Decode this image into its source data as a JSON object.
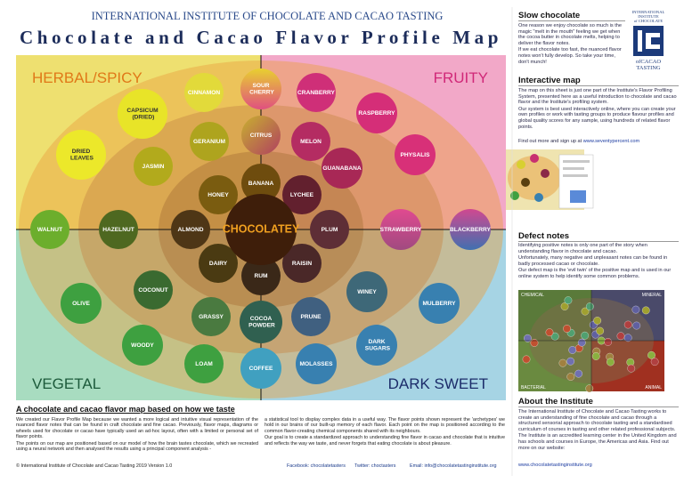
{
  "header": {
    "org": "INTERNATIONAL INSTITUTE OF CHOCOLATE AND CACAO TASTING",
    "title": "Chocolate and Cacao Flavor Profile Map"
  },
  "map": {
    "quadrants": {
      "top_left": "HERBAL/SPICY",
      "top_right": "FRUITY",
      "bottom_left": "VEGETAL",
      "bottom_right": "DARK SWEET"
    },
    "center": "CHOCOLATEY",
    "nodes": [
      "CINNAMON",
      "SOUR CHERRY",
      "CRANBERRY",
      "CAPSICUM (DRIED)",
      "RASPBERRY",
      "GERANIUM",
      "CITRUS",
      "MELON",
      "DRIED LEAVES",
      "JASMIN",
      "GUANABANA",
      "PHYSALIS",
      "BANANA",
      "HONEY",
      "LYCHEE",
      "WALNUT",
      "HAZELNUT",
      "ALMOND",
      "PLUM",
      "STRAWBERRY",
      "BLACKBERRY",
      "DAIRY",
      "RAISIN",
      "RUM",
      "COCONUT",
      "WINEY",
      "OLIVE",
      "MULBERRY",
      "GRASSY",
      "COCOA POWDER",
      "PRUNE",
      "WOODY",
      "DARK SUGARS",
      "LOAM",
      "COFFEE",
      "MOLASSES"
    ]
  },
  "intro": {
    "title": "A chocolate and cacao flavor map based on how we taste",
    "col1": [
      "We created our Flavor Profile Map because we wanted a more logical and intuitive visual representation of the nuanced flavor notes that can be found in craft chocolate and fine cacao. Previously, flavor maps, diagrams or wheels used for chocolate or cacao have typically used an ad-hoc layout, often with a limited or personal set of flavor points.",
      "The points on our map are positioned based on our model of how the brain tastes chocolate, which we recreated using a neural network and then analysed the results using a principal component analysis -"
    ],
    "col2": [
      "a statistical tool to display complex data in a useful way. The flavor points shown represent the 'archetypes' we hold in our brains of our built-up memory of each flavor. Each point on the map is positioned according to the common flavor-creating chemical components shared with its neighbours.",
      "Our goal is to create a standardized approach to understanding fine flavor in cacao and chocolate that is intuitive and reflects the way we taste, and never forgets that eating chocolate is about pleasure."
    ],
    "copyright": "© International Institute of Chocolate and Cacao Tasting 2019  Version 1.0",
    "facebook": "Facebook: chocolatetasters",
    "twitter": "Twitter: choctasters",
    "email": "Email: info@chocolatetastinginstitute.org"
  },
  "logo": {
    "top1": "INTERNATIONAL",
    "top2": "INSTITUTE",
    "top3": "of CHOCOLATE",
    "bottom1": "ofCACAO",
    "bottom2": "TASTING"
  },
  "sidebar": {
    "slow": {
      "title": "Slow chocolate",
      "paragraphs": [
        "One reason we enjoy chocolate so much is the magic \"melt in the mouth\" feeling we get when the cocoa butter in chocolate melts, helping to deliver the flavor notes.",
        "If we eat chocolate too fast, the nuanced flavor notes won't fully develop. So take your time, don't munch!"
      ]
    },
    "interactive": {
      "title": "Interactive map",
      "paragraphs": [
        "The map on this sheet is just one part of the Institute's Flavor Profiling System, presented here as a useful introduction to chocolate and cacao flavor and the Institute's profiling system.",
        "Our system is best used interactively online, where you can create your own profiles or work with tasting groups to produce flavour profiles and global quality scores for any sample, using hundreds of related flavor points."
      ],
      "link_text": "Find out more and sign up at ",
      "link": "www.seventypercent.com"
    },
    "defect": {
      "title": "Defect notes",
      "paragraphs": [
        "Identifying positive notes is only one part of the story when understanding flavor in chocolate and cacao.",
        "Unfortunately, many negative and unpleasant notes can be found in badly processed cacao or chocolate.",
        "Our defect map is the 'evil twin' of the positive map and is used in our online system to help identify some common problems."
      ],
      "map_labels": {
        "top_left": "CHEMICAL",
        "top_right": "MINERAL",
        "bottom_left": "BACTERIAL",
        "bottom_right": "ANIMAL"
      }
    },
    "about": {
      "title": "About the Institute",
      "paragraphs": [
        "The International Institute of Chocolate and Cacao Tasting works to create an understanding of fine chocolate and cacao through a structured sensorial approach to chocolate tasting and a standardised curriculum of courses in tasting and other related professional subjects.",
        "The Institute is an accredited learning center in the United Kingdom and has schools and courses in Europe, the Americas and Asia. Find out more on our website:"
      ],
      "link": "www.chocolatetastinginstitute.org"
    }
  }
}
